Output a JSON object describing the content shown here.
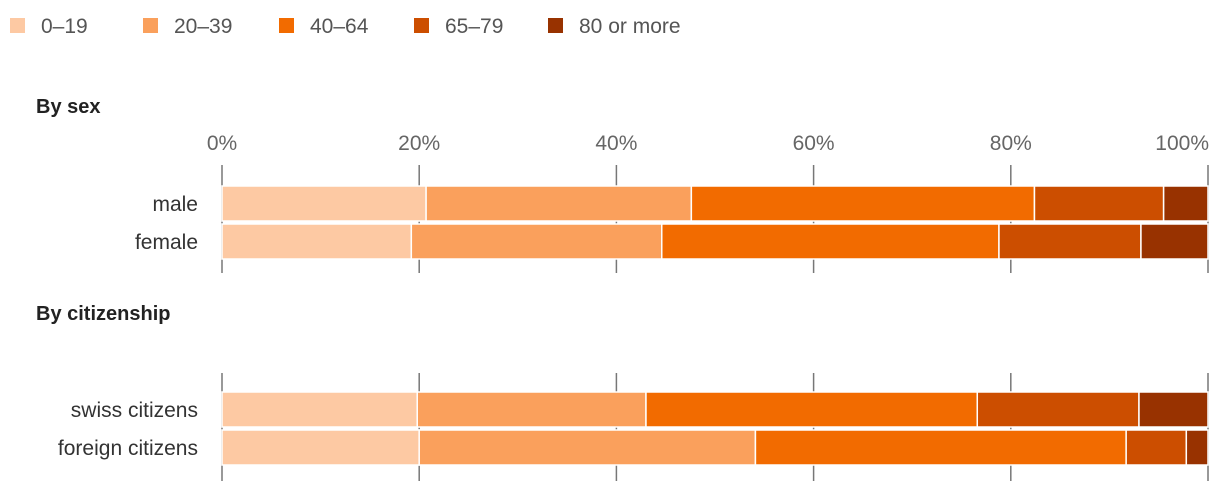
{
  "chart_data": {
    "type": "bar",
    "orientation": "horizontal",
    "stacked": true,
    "normalized_percent": true,
    "legend": {
      "placement": "top-left",
      "entries": [
        {
          "label": "0–19",
          "color": "#fdc9a3"
        },
        {
          "label": "20–39",
          "color": "#faa05c"
        },
        {
          "label": "40–64",
          "color": "#f26b00"
        },
        {
          "label": "65–79",
          "color": "#cc4e00"
        },
        {
          "label": "80 or more",
          "color": "#983200"
        }
      ]
    },
    "x_ticks": [
      "0%",
      "20%",
      "40%",
      "60%",
      "80%",
      "100%"
    ],
    "x_tick_values": [
      0,
      20,
      40,
      60,
      80,
      100
    ],
    "xlim": [
      0,
      100
    ],
    "grid": true,
    "panels": [
      {
        "title": "By sex",
        "show_tick_labels": true,
        "categories": [
          "male",
          "female"
        ],
        "series": [
          {
            "name": "0–19",
            "values": [
              20.7,
              19.2
            ]
          },
          {
            "name": "20–39",
            "values": [
              26.9,
              25.4
            ]
          },
          {
            "name": "40–64",
            "values": [
              34.8,
              34.2
            ]
          },
          {
            "name": "65–79",
            "values": [
              13.1,
              14.4
            ]
          },
          {
            "name": "80 or more",
            "values": [
              4.5,
              6.8
            ]
          }
        ]
      },
      {
        "title": "By citizenship",
        "show_tick_labels": false,
        "categories": [
          "swiss citizens",
          "foreign citizens"
        ],
        "series": [
          {
            "name": "0–19",
            "values": [
              19.8,
              20.0
            ]
          },
          {
            "name": "20–39",
            "values": [
              23.2,
              34.1
            ]
          },
          {
            "name": "40–64",
            "values": [
              33.6,
              37.6
            ]
          },
          {
            "name": "65–79",
            "values": [
              16.4,
              6.1
            ]
          },
          {
            "name": "80 or more",
            "values": [
              7.0,
              2.2
            ]
          }
        ]
      }
    ]
  }
}
